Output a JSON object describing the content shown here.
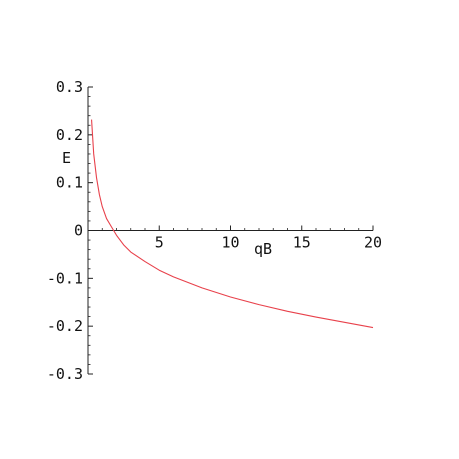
{
  "chart_data": {
    "type": "line",
    "xlabel": "qB",
    "ylabel": "E",
    "xlim": [
      0,
      20
    ],
    "ylim": [
      -0.3,
      0.3
    ],
    "x_ticks": [
      {
        "value": 5,
        "label": "5"
      },
      {
        "value": 10,
        "label": "10"
      },
      {
        "value": 15,
        "label": "15"
      },
      {
        "value": 20,
        "label": "20"
      }
    ],
    "y_ticks": [
      {
        "value": 0.3,
        "label": "0.3"
      },
      {
        "value": 0.2,
        "label": "0.2"
      },
      {
        "value": 0.1,
        "label": "0.1"
      },
      {
        "value": 0,
        "label": "0"
      },
      {
        "value": -0.1,
        "label": "-0.1"
      },
      {
        "value": -0.2,
        "label": "-0.2"
      },
      {
        "value": -0.3,
        "label": "-0.3"
      }
    ],
    "grid": false,
    "series": [
      {
        "color": "#e8414b",
        "x": [
          0.25,
          0.4,
          0.6,
          0.8,
          1.0,
          1.3,
          1.6,
          2.0,
          2.5,
          3.0,
          4.0,
          5.0,
          6.0,
          8.0,
          10.0,
          12.0,
          14.0,
          16.0,
          18.0,
          20.0
        ],
        "y": [
          0.232,
          0.16,
          0.11,
          0.075,
          0.05,
          0.025,
          0.01,
          -0.01,
          -0.03,
          -0.045,
          -0.065,
          -0.083,
          -0.097,
          -0.12,
          -0.139,
          -0.155,
          -0.169,
          -0.181,
          -0.192,
          -0.203
        ]
      }
    ]
  }
}
